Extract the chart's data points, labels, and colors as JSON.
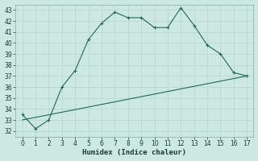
{
  "xlabel": "Humidex (Indice chaleur)",
  "bg_color": "#cde8e0",
  "grid_color": "#b8d8d0",
  "line_color": "#1a6b5a",
  "curve1_x": [
    0,
    1,
    2,
    3,
    4,
    5,
    6,
    7,
    8,
    9,
    10,
    11,
    12,
    13,
    14,
    15,
    16,
    17
  ],
  "curve1_y": [
    33.5,
    32.2,
    33.0,
    36.0,
    37.5,
    40.3,
    41.8,
    42.8,
    42.3,
    42.3,
    41.4,
    41.4,
    43.2,
    41.6,
    39.8,
    39.0,
    37.3,
    37.0
  ],
  "curve2_x": [
    0,
    17
  ],
  "curve2_y": [
    33.0,
    37.0
  ],
  "xlim": [
    -0.5,
    17.5
  ],
  "ylim": [
    31.5,
    43.5
  ],
  "xticks": [
    0,
    1,
    2,
    3,
    4,
    5,
    6,
    7,
    8,
    9,
    10,
    11,
    12,
    13,
    14,
    15,
    16,
    17
  ],
  "yticks": [
    32,
    33,
    34,
    35,
    36,
    37,
    38,
    39,
    40,
    41,
    42,
    43
  ]
}
